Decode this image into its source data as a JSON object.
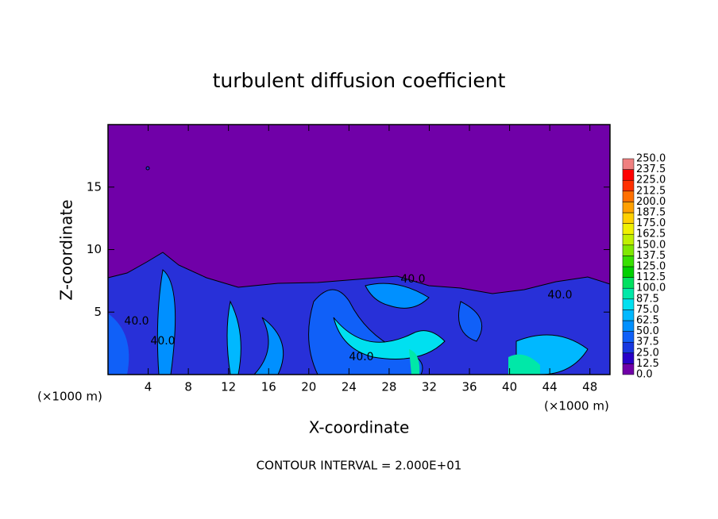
{
  "chart_data": {
    "type": "contour",
    "title": "turbulent diffusion coefficient",
    "x_label": "X-coordinate",
    "y_label": "Z-coordinate",
    "x_unit": "(×1000 m)",
    "y_unit": "(×1000 m)",
    "footer": "CONTOUR INTERVAL = 2.000E+01",
    "contour_labels": [
      "40.0",
      "40.0",
      "40.0",
      "40.0",
      "40.0"
    ],
    "xlim": [
      0,
      50
    ],
    "ylim": [
      0,
      20
    ],
    "xticks": [
      4,
      8,
      12,
      16,
      20,
      24,
      28,
      32,
      36,
      40,
      44,
      48
    ],
    "yticks": [
      5,
      10,
      15
    ],
    "colorbar": {
      "levels": [
        {
          "value": 0,
          "label": "0.0"
        },
        {
          "value": 12.5,
          "label": "12.5"
        },
        {
          "value": 25,
          "label": "25.0"
        },
        {
          "value": 37.5,
          "label": "37.5"
        },
        {
          "value": 50,
          "label": "50.0"
        },
        {
          "value": 62.5,
          "label": "62.5"
        },
        {
          "value": 75,
          "label": "75.0"
        },
        {
          "value": 87.5,
          "label": "87.5"
        },
        {
          "value": 100,
          "label": "100.0"
        },
        {
          "value": 112.5,
          "label": "112.5"
        },
        {
          "value": 125,
          "label": "125.0"
        },
        {
          "value": 137.5,
          "label": "137.5"
        },
        {
          "value": 150,
          "label": "150.0"
        },
        {
          "value": 162.5,
          "label": "162.5"
        },
        {
          "value": 175,
          "label": "175.0"
        },
        {
          "value": 187.5,
          "label": "187.5"
        },
        {
          "value": 200,
          "label": "200.0"
        },
        {
          "value": 212.5,
          "label": "212.5"
        },
        {
          "value": 225,
          "label": "225.0"
        },
        {
          "value": 237.5,
          "label": "237.5"
        },
        {
          "value": 250,
          "label": "250.0"
        }
      ],
      "colors": [
        "#7000a8",
        "#2800c8",
        "#1838e0",
        "#1060f8",
        "#0090ff",
        "#00b8ff",
        "#00e0f0",
        "#00e8a8",
        "#00e060",
        "#00d000",
        "#38e000",
        "#80e800",
        "#c0f000",
        "#f0f000",
        "#ffd000",
        "#ffa000",
        "#ff7000",
        "#ff3000",
        "#ff0000",
        "#f08080"
      ]
    }
  }
}
